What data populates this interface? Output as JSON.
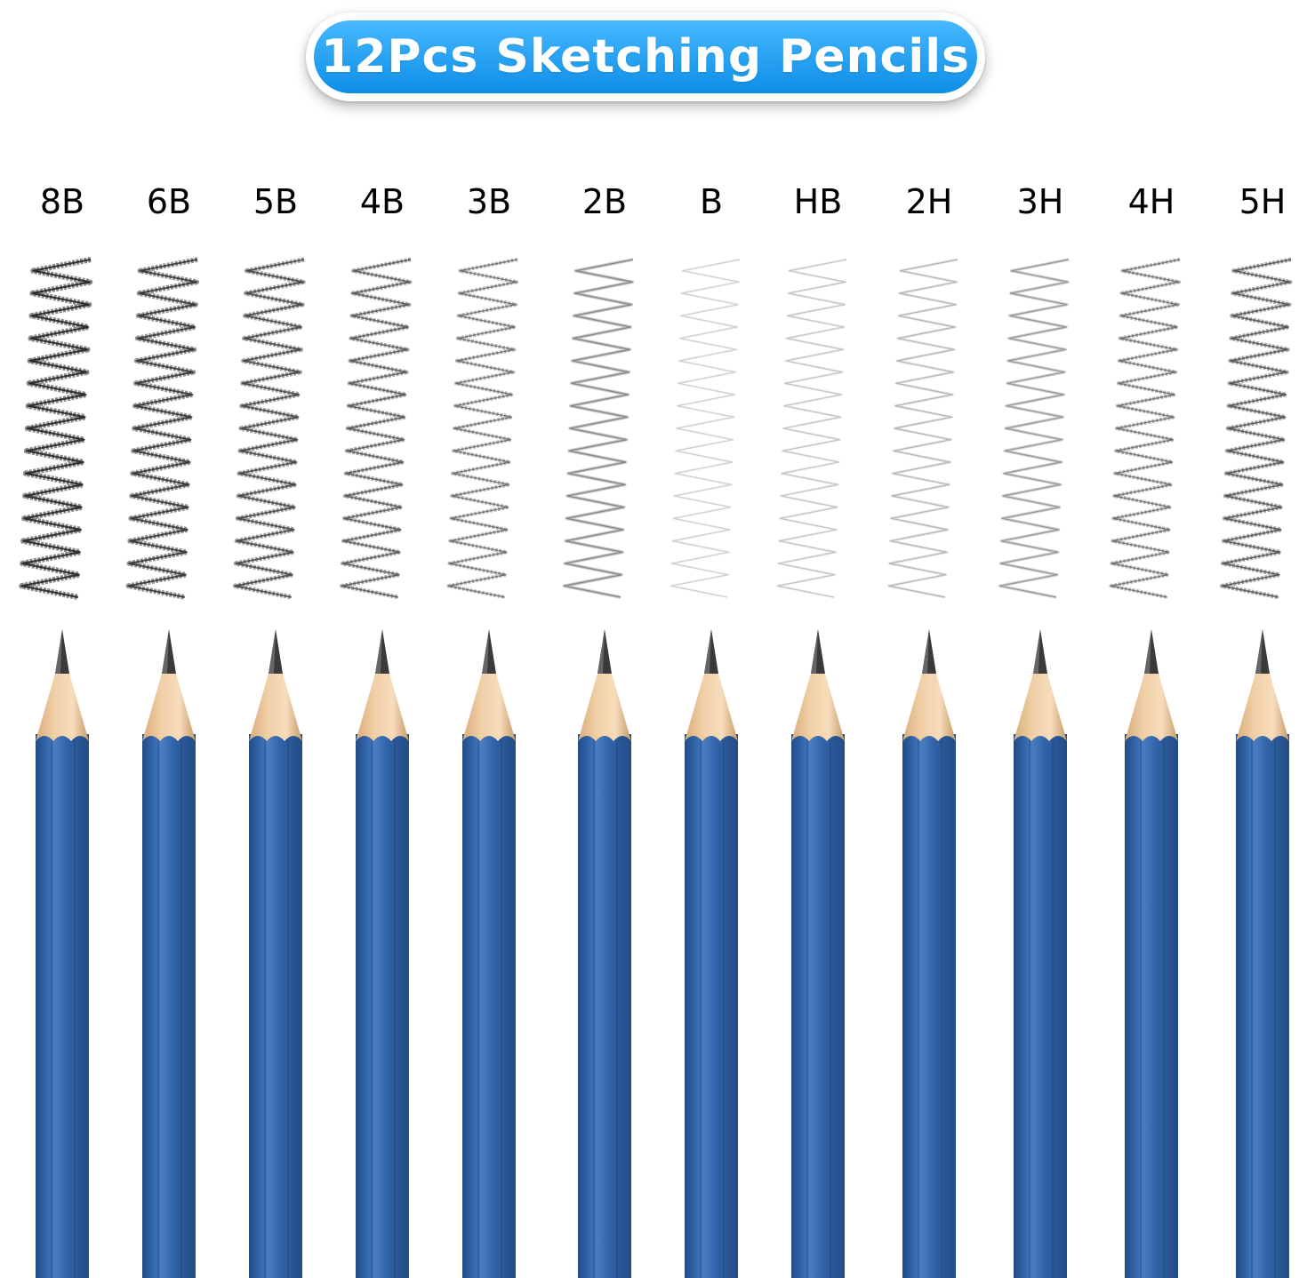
{
  "title": "12Pcs Sketching Pencils",
  "colors": {
    "banner_top": "#46b8ff",
    "banner_bottom": "#0e8ee6",
    "pencil_body": "#2f62a6",
    "pencil_body_light": "#4a7dc0",
    "pencil_body_dark": "#234c84",
    "wood": "#f1cfa6",
    "graphite": "#3a3a3a"
  },
  "pencils": [
    {
      "grade": "8B",
      "darkness": 0.95
    },
    {
      "grade": "6B",
      "darkness": 0.85
    },
    {
      "grade": "5B",
      "darkness": 0.75
    },
    {
      "grade": "4B",
      "darkness": 0.65
    },
    {
      "grade": "3B",
      "darkness": 0.55
    },
    {
      "grade": "2B",
      "darkness": 0.45
    },
    {
      "grade": "B",
      "darkness": 0.18
    },
    {
      "grade": "HB",
      "darkness": 0.22
    },
    {
      "grade": "2H",
      "darkness": 0.28
    },
    {
      "grade": "3H",
      "darkness": 0.38
    },
    {
      "grade": "4H",
      "darkness": 0.55
    },
    {
      "grade": "5H",
      "darkness": 0.68
    }
  ]
}
